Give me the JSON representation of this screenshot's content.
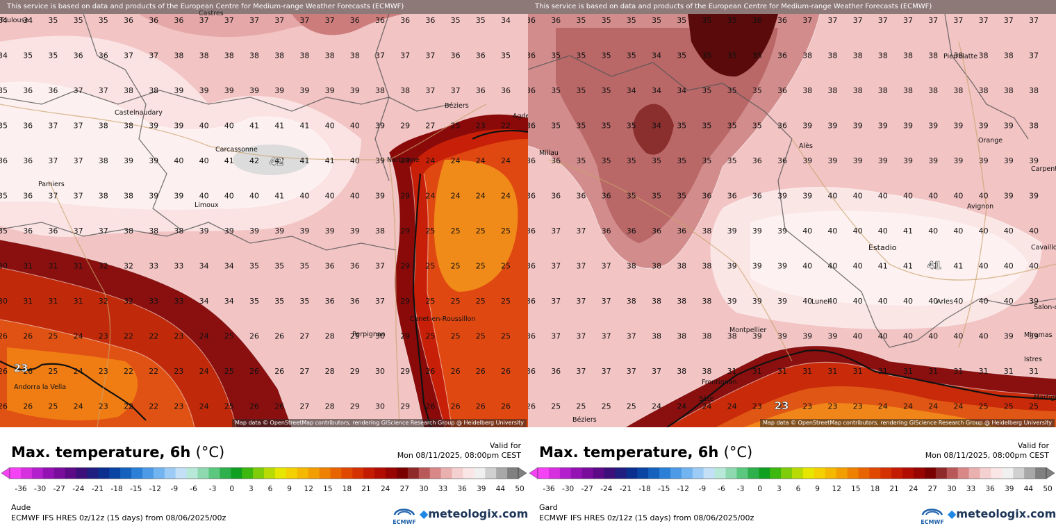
{
  "attribution_top": "This service is based on data and products of the European Centre for Medium-range Weather Forecasts (ECMWF)",
  "attribution_bottom": "Map data © OpenStreetMap contributors, rendering GIScience Research Group @ Heidelberg University",
  "title": "Max. temperature, 6h",
  "unit": "(°C)",
  "valid_label": "Valid for",
  "valid_time": "Mon 08/11/2025, 08:00pm CEST",
  "model_line": "ECMWF IFS HRES 0z/12z (15 days) from  08/06/2025/00z",
  "ecmwf_text": "ECMWF",
  "meteologix_text": "meteologix.com",
  "scale_ticks": [
    "-36",
    "-30",
    "-27",
    "-24",
    "-21",
    "-18",
    "-15",
    "-12",
    "-9",
    "-6",
    "-3",
    "0",
    "3",
    "6",
    "9",
    "12",
    "15",
    "18",
    "21",
    "24",
    "27",
    "30",
    "33",
    "36",
    "39",
    "44",
    "50"
  ],
  "scale_colors": [
    "#f542f5",
    "#d62fe0",
    "#b31fcc",
    "#9412b3",
    "#7a0c9c",
    "#5c0a85",
    "#3c0f7a",
    "#201e80",
    "#0b2f8f",
    "#0a45a3",
    "#1462bd",
    "#2b7fd6",
    "#4d9ae6",
    "#72b4f0",
    "#9ccbf5",
    "#c3e0f7",
    "#b8e8d8",
    "#8fd9b0",
    "#5cc77f",
    "#2eb04c",
    "#10a020",
    "#3cb80f",
    "#7fcc0a",
    "#b8db05",
    "#e6e600",
    "#f5d000",
    "#f5b800",
    "#f29e00",
    "#ee8200",
    "#e86400",
    "#e04800",
    "#d43000",
    "#c41a00",
    "#b00d00",
    "#980500",
    "#7a0000",
    "#8f2a2a",
    "#b85858",
    "#d98787",
    "#eab0b0",
    "#f5d0d0",
    "#fae6e6",
    "#f0f0f0",
    "#d0d0d0",
    "#a8a8a8",
    "#808080"
  ],
  "panels": [
    {
      "region": "Aude",
      "cities": [
        {
          "name": "Toulouse"
        },
        {
          "name": "Castres"
        },
        {
          "name": "Castelnaudary"
        },
        {
          "name": "Béziers"
        },
        {
          "name": "Agde"
        },
        {
          "name": "Carcassonne"
        },
        {
          "name": "Narbonne"
        },
        {
          "name": "Pamiers"
        },
        {
          "name": "Limoux"
        },
        {
          "name": "Perpignan"
        },
        {
          "name": "Canet-en-Roussillon"
        },
        {
          "name": "Andorra la Vella"
        }
      ],
      "max_label": "42",
      "min_label": "23"
    },
    {
      "region": "Gard",
      "cities": [
        {
          "name": "Pierrelatte"
        },
        {
          "name": "Millau"
        },
        {
          "name": "Alès"
        },
        {
          "name": "Orange"
        },
        {
          "name": "Carpentras"
        },
        {
          "name": "Avignon"
        },
        {
          "name": "Cavaillon"
        },
        {
          "name": "Estadio"
        },
        {
          "name": "Lunel"
        },
        {
          "name": "Arles"
        },
        {
          "name": "Montpellier"
        },
        {
          "name": "Salon-de-Provence"
        },
        {
          "name": "Miramas"
        },
        {
          "name": "Istres"
        },
        {
          "name": "Frontignan"
        },
        {
          "name": "Sète"
        },
        {
          "name": "Martigues"
        },
        {
          "name": "Béziers"
        }
      ],
      "max_label": "41",
      "min_label": "23"
    }
  ]
}
